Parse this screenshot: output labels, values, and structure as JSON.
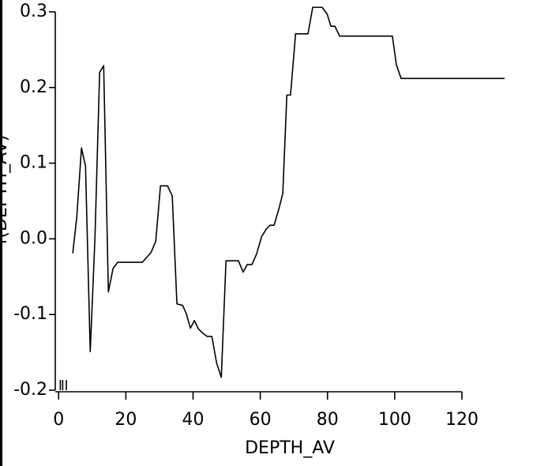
{
  "chart_data": {
    "type": "line",
    "xlabel": "DEPTH_AV",
    "ylabel": "f(DEPTH_AV)",
    "x": [
      4.2,
      5.4,
      6.8,
      8.0,
      9.4,
      10.8,
      12.2,
      13.4,
      14.8,
      16.2,
      17.6,
      24.9,
      27.5,
      28.9,
      30.3,
      32.4,
      33.8,
      35.2,
      36.9,
      38.0,
      39.2,
      40.4,
      41.6,
      43.0,
      44.2,
      45.6,
      47.0,
      48.4,
      49.8,
      53.5,
      54.9,
      56.1,
      57.5,
      58.9,
      60.4,
      61.8,
      62.9,
      64.1,
      65.5,
      66.7,
      67.9,
      69.0,
      70.5,
      74.2,
      75.6,
      78.4,
      79.9,
      81.0,
      82.2,
      83.6,
      99.3,
      100.5,
      101.9,
      132.7
    ],
    "values": [
      -0.019,
      0.029,
      0.12,
      0.096,
      -0.149,
      0.0,
      0.22,
      0.229,
      -0.07,
      -0.039,
      -0.031,
      -0.031,
      -0.018,
      -0.003,
      0.07,
      0.07,
      0.057,
      -0.086,
      -0.088,
      -0.099,
      -0.118,
      -0.108,
      -0.119,
      -0.125,
      -0.129,
      -0.129,
      -0.164,
      -0.183,
      -0.029,
      -0.029,
      -0.044,
      -0.034,
      -0.034,
      -0.02,
      0.003,
      0.013,
      0.018,
      0.018,
      0.039,
      0.06,
      0.19,
      0.19,
      0.271,
      0.271,
      0.306,
      0.306,
      0.297,
      0.281,
      0.281,
      0.268,
      0.268,
      0.23,
      0.212,
      0.212
    ],
    "color": "#000000",
    "rug": [
      0.5,
      1.2,
      2.3
    ],
    "xlim": [
      -1,
      120
    ],
    "xticks": [
      0,
      20,
      40,
      60,
      80,
      100,
      120
    ],
    "ylim": [
      -0.2,
      0.3
    ],
    "yticks": [
      -0.2,
      -0.1,
      {
        "value": 0,
        "label": "0.0"
      },
      0.1,
      0.2,
      0.3
    ]
  }
}
